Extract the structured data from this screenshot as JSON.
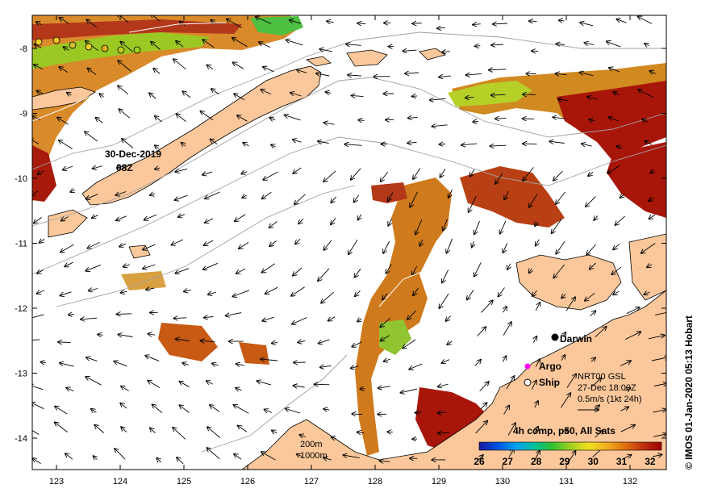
{
  "map": {
    "x_ticks": [
      "123",
      "124",
      "125",
      "126",
      "127",
      "128",
      "129",
      "130",
      "131",
      "132"
    ],
    "y_ticks": [
      "-8",
      "-9",
      "-10",
      "-11",
      "-12",
      "-13",
      "-14"
    ],
    "land_color": "#FCC89B",
    "coast_color": "#000000",
    "contour_color": "#A0A0A0"
  },
  "places": {
    "darwin": "Darwin",
    "stamp_line1": "30-Dec-2019",
    "stamp_line2": "08Z"
  },
  "legend": {
    "argo": "Argo",
    "ship": "Ship",
    "argo_color": "#FF00FF",
    "current_line1": "NRT00 GSL",
    "current_line2": "27-Dec 18:00Z",
    "current_line3": "0.5m/s (1kt 24h)",
    "depth_200": "200m",
    "depth_1000": "1000m"
  },
  "colorbar": {
    "title": "4h comp, p50, All Sats",
    "ticks": [
      "26",
      "27",
      "28",
      "29",
      "30",
      "31",
      "32"
    ],
    "colors": [
      "#1A1AA0",
      "#0050E0",
      "#00A0F0",
      "#00C0A0",
      "#30C030",
      "#A0D020",
      "#F0E020",
      "#F0B020",
      "#E07010",
      "#C03010",
      "#A00000"
    ]
  },
  "credit": "© IMOS 01-Jan-2020 05:13 Hobart"
}
